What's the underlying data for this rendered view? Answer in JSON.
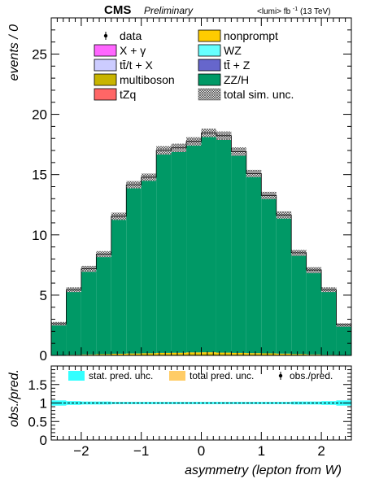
{
  "header": {
    "experiment": "CMS",
    "status": "Preliminary",
    "lumi_prefix": "<lumi> fb",
    "lumi_exp": "-1",
    "energy": "(13 TeV)"
  },
  "chart_data": [
    {
      "type": "bar",
      "stacked": true,
      "xlabel": "asymmetry (lepton from W)",
      "ylabel": "events / 0",
      "xlim": [
        -2.5,
        2.5
      ],
      "ylim": [
        0,
        28
      ],
      "x_ticks": [
        -2,
        -1,
        0,
        1,
        2
      ],
      "y_ticks": [
        0,
        5,
        10,
        15,
        20,
        25
      ],
      "bin_edges": [
        -2.5,
        -2.25,
        -2.0,
        -1.75,
        -1.5,
        -1.25,
        -1.0,
        -0.75,
        -0.5,
        -0.25,
        0.0,
        0.25,
        0.5,
        0.75,
        1.0,
        1.25,
        1.5,
        1.75,
        2.0,
        2.25,
        2.5
      ],
      "series": [
        {
          "name": "multiboson",
          "color": "#c8b400",
          "values": [
            0.02,
            0.03,
            0.05,
            0.06,
            0.08,
            0.09,
            0.1,
            0.12,
            0.12,
            0.13,
            0.14,
            0.13,
            0.12,
            0.11,
            0.1,
            0.09,
            0.07,
            0.05,
            0.03,
            0.02
          ]
        },
        {
          "name": "nonprompt",
          "color": "#ffcc00",
          "values": [
            0.01,
            0.02,
            0.03,
            0.04,
            0.06,
            0.07,
            0.08,
            0.09,
            0.1,
            0.12,
            0.12,
            0.1,
            0.09,
            0.08,
            0.07,
            0.06,
            0.04,
            0.03,
            0.02,
            0.01
          ]
        },
        {
          "name": "ZZ/H",
          "color": "#009966",
          "values": [
            2.6,
            5.4,
            7.1,
            8.3,
            11.4,
            14.0,
            14.6,
            16.8,
            17.0,
            17.5,
            18.2,
            18.0,
            16.7,
            14.9,
            13.1,
            11.5,
            8.4,
            7.0,
            5.4,
            2.5
          ]
        }
      ],
      "uncertainty": {
        "name": "total sim. unc.",
        "values": [
          0.15,
          0.2,
          0.25,
          0.25,
          0.3,
          0.3,
          0.3,
          0.35,
          0.35,
          0.35,
          0.35,
          0.35,
          0.35,
          0.3,
          0.3,
          0.3,
          0.25,
          0.25,
          0.2,
          0.15
        ]
      },
      "legend": {
        "position": "top",
        "entries": [
          {
            "label": "data",
            "style": "marker",
            "color": "#000000"
          },
          {
            "label": "nonprompt",
            "style": "box",
            "color": "#ffcc00"
          },
          {
            "label": "X + γ",
            "style": "box",
            "color": "#ff66ff"
          },
          {
            "label": "WZ",
            "style": "box",
            "color": "#66ffff"
          },
          {
            "label": "tt̄/t + X",
            "style": "box",
            "color": "#ccccff"
          },
          {
            "label": "tt̄ + Z",
            "style": "box",
            "color": "#6666cc"
          },
          {
            "label": "multiboson",
            "style": "box",
            "color": "#c8b400"
          },
          {
            "label": "ZZ/H",
            "style": "box",
            "color": "#009966"
          },
          {
            "label": "tZq",
            "style": "box",
            "color": "#ff6666"
          },
          {
            "label": "total sim. unc.",
            "style": "hatch",
            "color": "#555555"
          }
        ]
      }
    },
    {
      "type": "area",
      "xlabel": "asymmetry (lepton from W)",
      "ylabel": "obs./pred.",
      "xlim": [
        -2.5,
        2.5
      ],
      "ylim": [
        0,
        2
      ],
      "x_ticks": [
        -2,
        -1,
        0,
        1,
        2
      ],
      "y_ticks": [
        0,
        0.5,
        1,
        1.5
      ],
      "reference_line": 1,
      "stat_unc": [
        0.07,
        0.05,
        0.04,
        0.04,
        0.03,
        0.03,
        0.03,
        0.03,
        0.03,
        0.03,
        0.03,
        0.03,
        0.03,
        0.03,
        0.03,
        0.03,
        0.04,
        0.04,
        0.05,
        0.07
      ],
      "legend": {
        "position": "top",
        "entries": [
          {
            "label": "stat. pred. unc.",
            "style": "box",
            "color": "#33ffff"
          },
          {
            "label": "total pred. unc.",
            "style": "box",
            "color": "#ffcc66"
          },
          {
            "label": "obs./pred.",
            "style": "marker",
            "color": "#000000"
          }
        ]
      }
    }
  ]
}
